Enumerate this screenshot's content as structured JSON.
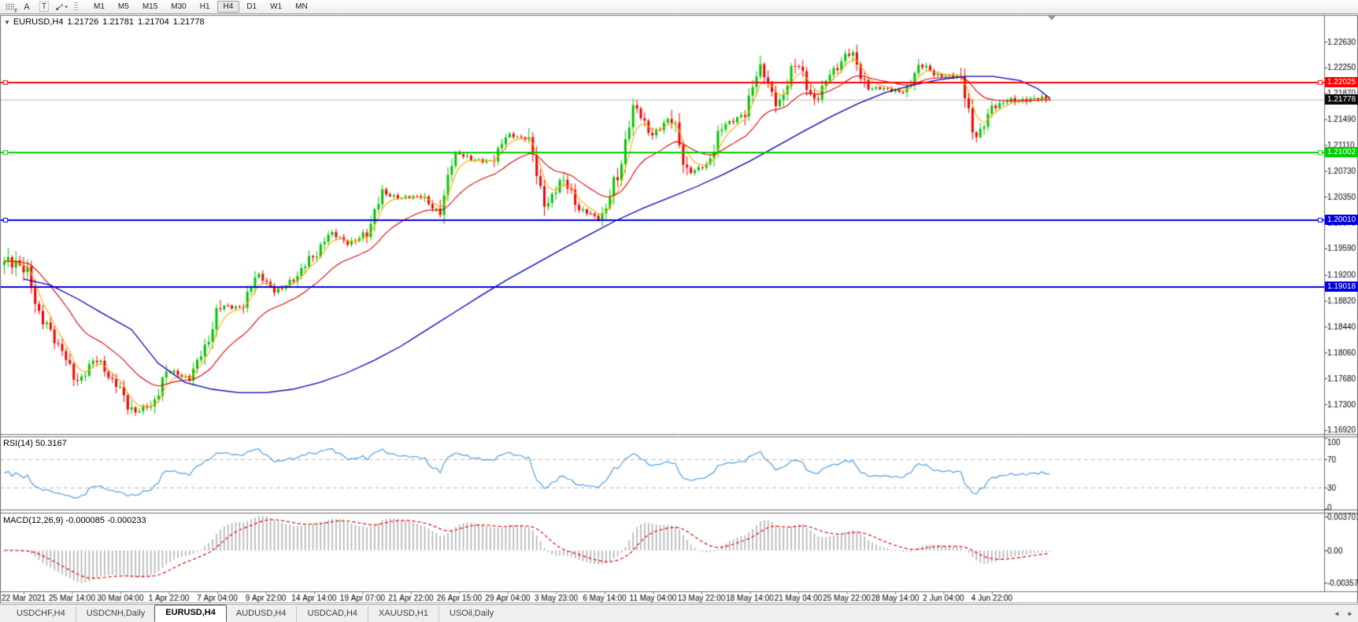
{
  "toolbar": {
    "label_f": "F",
    "label_a": "A",
    "label_t": "T",
    "draw_caret": "▾",
    "timeframes": [
      "M1",
      "M5",
      "M15",
      "M30",
      "H1",
      "H4",
      "D1",
      "W1",
      "MN"
    ],
    "active_timeframe": "H4"
  },
  "header": {
    "arrow": "▼",
    "symbol": "EURUSD,H4",
    "open": "1.21726",
    "high": "1.21781",
    "low": "1.21704",
    "close": "1.21778"
  },
  "rsi_pane": {
    "label": "RSI(14)",
    "value": "50.3167"
  },
  "macd_pane": {
    "label": "MACD(12,26,9)",
    "values": "-0.000085 -0.000233"
  },
  "badges": {
    "resistance": "1.22025",
    "current": "1.21778",
    "support_green": "1.21002",
    "support_blue1": "1.20010",
    "support_blue2": "1.19018"
  },
  "tabs": {
    "items": [
      "USDCHF,H4",
      "USDCNH,Daily",
      "EURUSD,H4",
      "AUDUSD,H4",
      "USDCAD,H4",
      "XAUUSD,H1",
      "USOil,Daily"
    ],
    "active": "EURUSD,H4",
    "scroll_left": "◄",
    "scroll_right": "►"
  },
  "colors": {
    "candle_up": "#00c400",
    "candle_down": "#f50000",
    "ma_fast": "#ffa800",
    "ma_mid": "#dd0000",
    "ma_slow": "#0000b4",
    "rsi_line": "#4c9fe0",
    "rsi_level": "#b8b8b8",
    "macd_hist": "#b2b2b2",
    "macd_signal": "#e00000",
    "current_line": "#b6b6b6",
    "axis_text": "#000000",
    "pane_border": "#6e6e6e",
    "badge_current_bg": "#0a0a0a"
  },
  "chart_data": [
    {
      "type": "candlestick",
      "symbol": "EURUSD",
      "timeframe": "H4",
      "ohlc_current": {
        "open": 1.21726,
        "high": 1.21781,
        "low": 1.21704,
        "close": 1.21778
      },
      "last_close": 1.21778,
      "price_range_visible": [
        1.1686,
        1.2301
      ],
      "y_ticks": [
        "1.22630",
        "1.22250",
        "1.21870",
        "1.21490",
        "1.21110",
        "1.20730",
        "1.20350",
        "1.19970",
        "1.19590",
        "1.19200",
        "1.18820",
        "1.18440",
        "1.18060",
        "1.17680",
        "1.17300",
        "1.16920"
      ],
      "x_labels": [
        "22 Mar 2021",
        "25 Mar 14:00",
        "30 Mar 04:00",
        "1 Apr 22:00",
        "7 Apr 04:00",
        "9 Apr 22:00",
        "14 Apr 14:00",
        "19 Apr 07:00",
        "21 Apr 22:00",
        "26 Apr 15:00",
        "29 Apr 04:00",
        "3 May 23:00",
        "6 May 14:00",
        "11 May 04:00",
        "13 May 22:00",
        "18 May 14:00",
        "21 May 04:00",
        "25 May 22:00",
        "28 May 14:00",
        "2 Jun 04:00",
        "4 Jun 22:00"
      ],
      "daily_closes": [
        1.1935,
        1.185,
        1.1812,
        1.1765,
        1.1794,
        1.1765,
        1.1716,
        1.173,
        1.1777,
        1.177,
        1.181,
        1.1875,
        1.1873,
        1.1917,
        1.1899,
        1.1911,
        1.1948,
        1.198,
        1.1967,
        1.1982,
        1.2038,
        1.2035,
        1.2034,
        1.2016,
        1.2097,
        1.209,
        1.2088,
        1.2125,
        1.2122,
        1.202,
        1.2063,
        1.2013,
        1.2004,
        1.2064,
        1.2165,
        1.2129,
        1.2147,
        1.2073,
        1.208,
        1.2144,
        1.2154,
        1.2222,
        1.2174,
        1.2228,
        1.2181,
        1.2216,
        1.225,
        1.2193,
        1.2194,
        1.219,
        1.2227,
        1.2214,
        1.2211,
        1.2128,
        1.2166,
        1.2178
      ],
      "extreme_low": 1.1704,
      "extreme_high": 1.2266,
      "horizontal_lines": [
        {
          "price": 1.22025,
          "color": "#ff0000",
          "label": "1.22025",
          "handles": true
        },
        {
          "price": 1.21002,
          "color": "#00ce00",
          "label": "1.21002",
          "handles": true
        },
        {
          "price": 1.2001,
          "color": "#0000dc",
          "label": "1.20010",
          "handles": true
        },
        {
          "price": 1.19018,
          "color": "#0000dc",
          "label": "1.19018",
          "handles": false
        }
      ],
      "current_price_line": {
        "price": 1.21778,
        "label": "1.21778"
      },
      "ma_fast_period": 5,
      "ma_mid_period": 21,
      "ma_slow_points": [
        [
          0,
          1.1914
        ],
        [
          1.5,
          1.1905
        ],
        [
          3,
          1.1885
        ],
        [
          4.5,
          1.1862
        ],
        [
          6,
          1.184
        ],
        [
          7.5,
          1.179
        ],
        [
          9,
          1.1762
        ],
        [
          10.5,
          1.1752
        ],
        [
          12,
          1.1747
        ],
        [
          13.5,
          1.1747
        ],
        [
          15,
          1.1752
        ],
        [
          16.5,
          1.1762
        ],
        [
          18,
          1.1776
        ],
        [
          19.5,
          1.1794
        ],
        [
          21,
          1.1815
        ],
        [
          22.5,
          1.184
        ],
        [
          24,
          1.1865
        ],
        [
          25.5,
          1.189
        ],
        [
          27,
          1.1914
        ],
        [
          28.5,
          1.1936
        ],
        [
          30,
          1.1958
        ],
        [
          31.5,
          1.1979
        ],
        [
          33,
          1.2
        ],
        [
          34.5,
          1.2018
        ],
        [
          36,
          1.2034
        ],
        [
          37.5,
          1.205
        ],
        [
          39,
          1.2068
        ],
        [
          40.5,
          1.2088
        ],
        [
          42,
          1.211
        ],
        [
          43.5,
          1.2132
        ],
        [
          45,
          1.2153
        ],
        [
          46.5,
          1.2172
        ],
        [
          48,
          1.2188
        ],
        [
          49.5,
          1.2199
        ],
        [
          51,
          1.2207
        ],
        [
          52.5,
          1.2212
        ],
        [
          54,
          1.2212
        ],
        [
          55.5,
          1.2206
        ],
        [
          56.5,
          1.2194
        ],
        [
          57.3,
          1.218
        ]
      ],
      "bars_estimate": 272
    },
    {
      "type": "line",
      "name": "RSI",
      "params": "14",
      "current_value": 50.3167,
      "range": [
        0,
        100
      ],
      "levels": [
        70,
        30
      ],
      "axis_labels": [
        "100",
        "70",
        "30",
        "0"
      ]
    },
    {
      "type": "bar",
      "name": "MACD",
      "params": "12,26,9",
      "macd_value": -8.5e-05,
      "signal_value": -0.000233,
      "axis_labels": [
        "0.003701",
        "0.00",
        "-0.00357"
      ]
    }
  ]
}
